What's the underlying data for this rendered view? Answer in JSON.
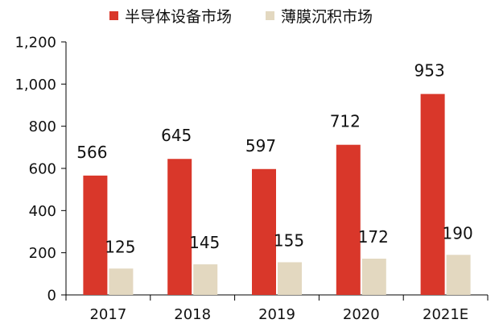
{
  "chart_data": {
    "type": "bar",
    "categories": [
      "2017",
      "2018",
      "2019",
      "2020",
      "2021E"
    ],
    "series": [
      {
        "name": "半导体设备市场",
        "values": [
          566,
          645,
          597,
          712,
          953
        ],
        "color": "#d9372a"
      },
      {
        "name": "薄膜沉积市场",
        "values": [
          125,
          145,
          155,
          172,
          190
        ],
        "color": "#e3d8c0"
      }
    ],
    "ylim": [
      0,
      1200
    ],
    "yticks": [
      "0",
      "200",
      "400",
      "600",
      "800",
      "1,000",
      "1,200"
    ],
    "ytick_values": [
      0,
      200,
      400,
      600,
      800,
      1000,
      1200
    ],
    "title": "",
    "xlabel": "",
    "ylabel": "",
    "grid": false,
    "legend_position": "top"
  }
}
